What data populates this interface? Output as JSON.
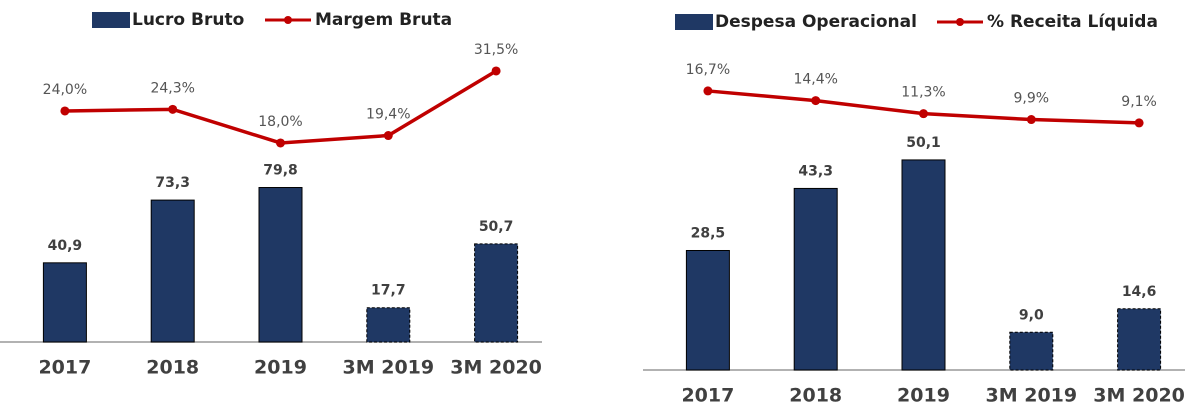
{
  "chart_data": [
    {
      "type": "bar-line",
      "categories": [
        "2017",
        "2018",
        "2019",
        "3M 2019",
        "3M 2020"
      ],
      "ylim": [
        0,
        156
      ],
      "y2lim": [
        -19.3,
        37.3
      ],
      "series": [
        {
          "name": "Lucro Bruto",
          "type": "bar",
          "color": "#1f3864",
          "values": [
            40.9,
            73.3,
            79.8,
            17.7,
            50.7
          ],
          "value_labels": [
            "40,9",
            "73,3",
            "79,8",
            "17,7",
            "50,7"
          ],
          "dashed": [
            false,
            false,
            false,
            true,
            true
          ]
        },
        {
          "name": "Margem Bruta",
          "type": "line",
          "axis": "y2",
          "color": "#c00000",
          "values": [
            24.0,
            24.3,
            18.0,
            19.4,
            31.5
          ],
          "value_labels": [
            "24,0%",
            "24,3%",
            "18,0%",
            "19,4%",
            "31,5%"
          ]
        }
      ]
    },
    {
      "type": "bar-line",
      "categories": [
        "2017",
        "2018",
        "2019",
        "3M 2019",
        "3M 2020"
      ],
      "ylim": [
        0,
        78.7
      ],
      "y2lim": [
        -49.6,
        28.8
      ],
      "series": [
        {
          "name": "Despesa Operacional",
          "type": "bar",
          "color": "#1f3864",
          "values": [
            28.5,
            43.3,
            50.1,
            9.0,
            14.6
          ],
          "value_labels": [
            "28,5",
            "43,3",
            "50,1",
            "9,0",
            "14,6"
          ],
          "dashed": [
            false,
            false,
            false,
            true,
            true
          ]
        },
        {
          "name": "% Receita Líquida",
          "type": "line",
          "axis": "y2",
          "color": "#c00000",
          "values": [
            16.7,
            14.4,
            11.3,
            9.9,
            9.1
          ],
          "value_labels": [
            "16,7%",
            "14,4%",
            "11,3%",
            "9,9%",
            "9,1%"
          ]
        }
      ]
    }
  ]
}
